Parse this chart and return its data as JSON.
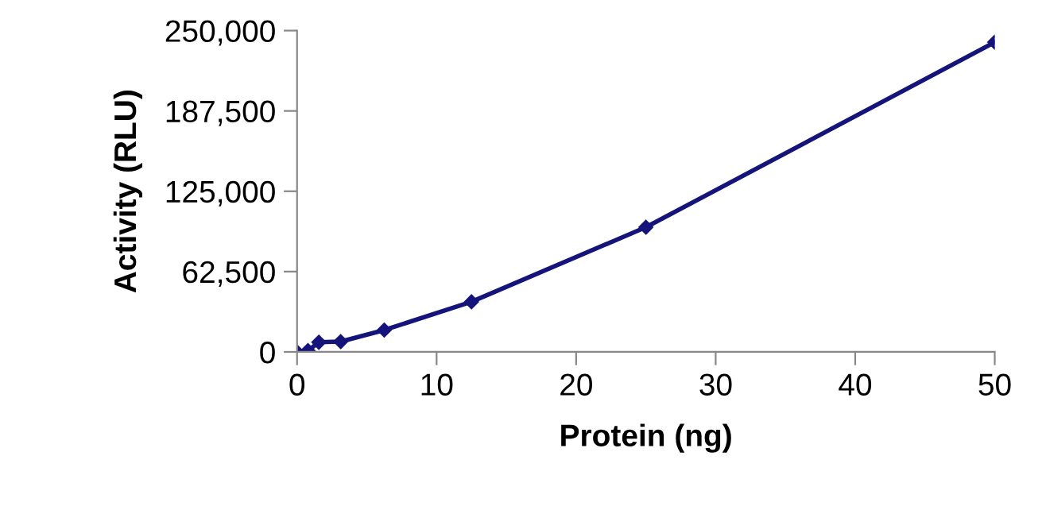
{
  "chart_data": {
    "type": "line",
    "xlabel": "Protein (ng)",
    "ylabel": "Activity (RLU)",
    "x": [
      0,
      0.78,
      1.56,
      3.125,
      6.25,
      12.5,
      25,
      50
    ],
    "series": [
      {
        "color": "#14147a",
        "values": [
          0,
          1000,
          7500,
          8000,
          17000,
          39000,
          97000,
          241000
        ]
      }
    ],
    "xlim": [
      0,
      50
    ],
    "xticks": [
      0,
      10,
      20,
      30,
      40,
      50
    ],
    "ylim": [
      0,
      250000
    ],
    "yticks": [
      {
        "value": 0,
        "label": "0"
      },
      {
        "value": 62500,
        "label": "62,500"
      },
      {
        "value": 125000,
        "label": "125,000"
      },
      {
        "value": 187500,
        "label": "187,500"
      },
      {
        "value": 250000,
        "label": "250,000"
      }
    ],
    "marker": "diamond",
    "line_style": "solid",
    "grid": false,
    "legend": false
  }
}
